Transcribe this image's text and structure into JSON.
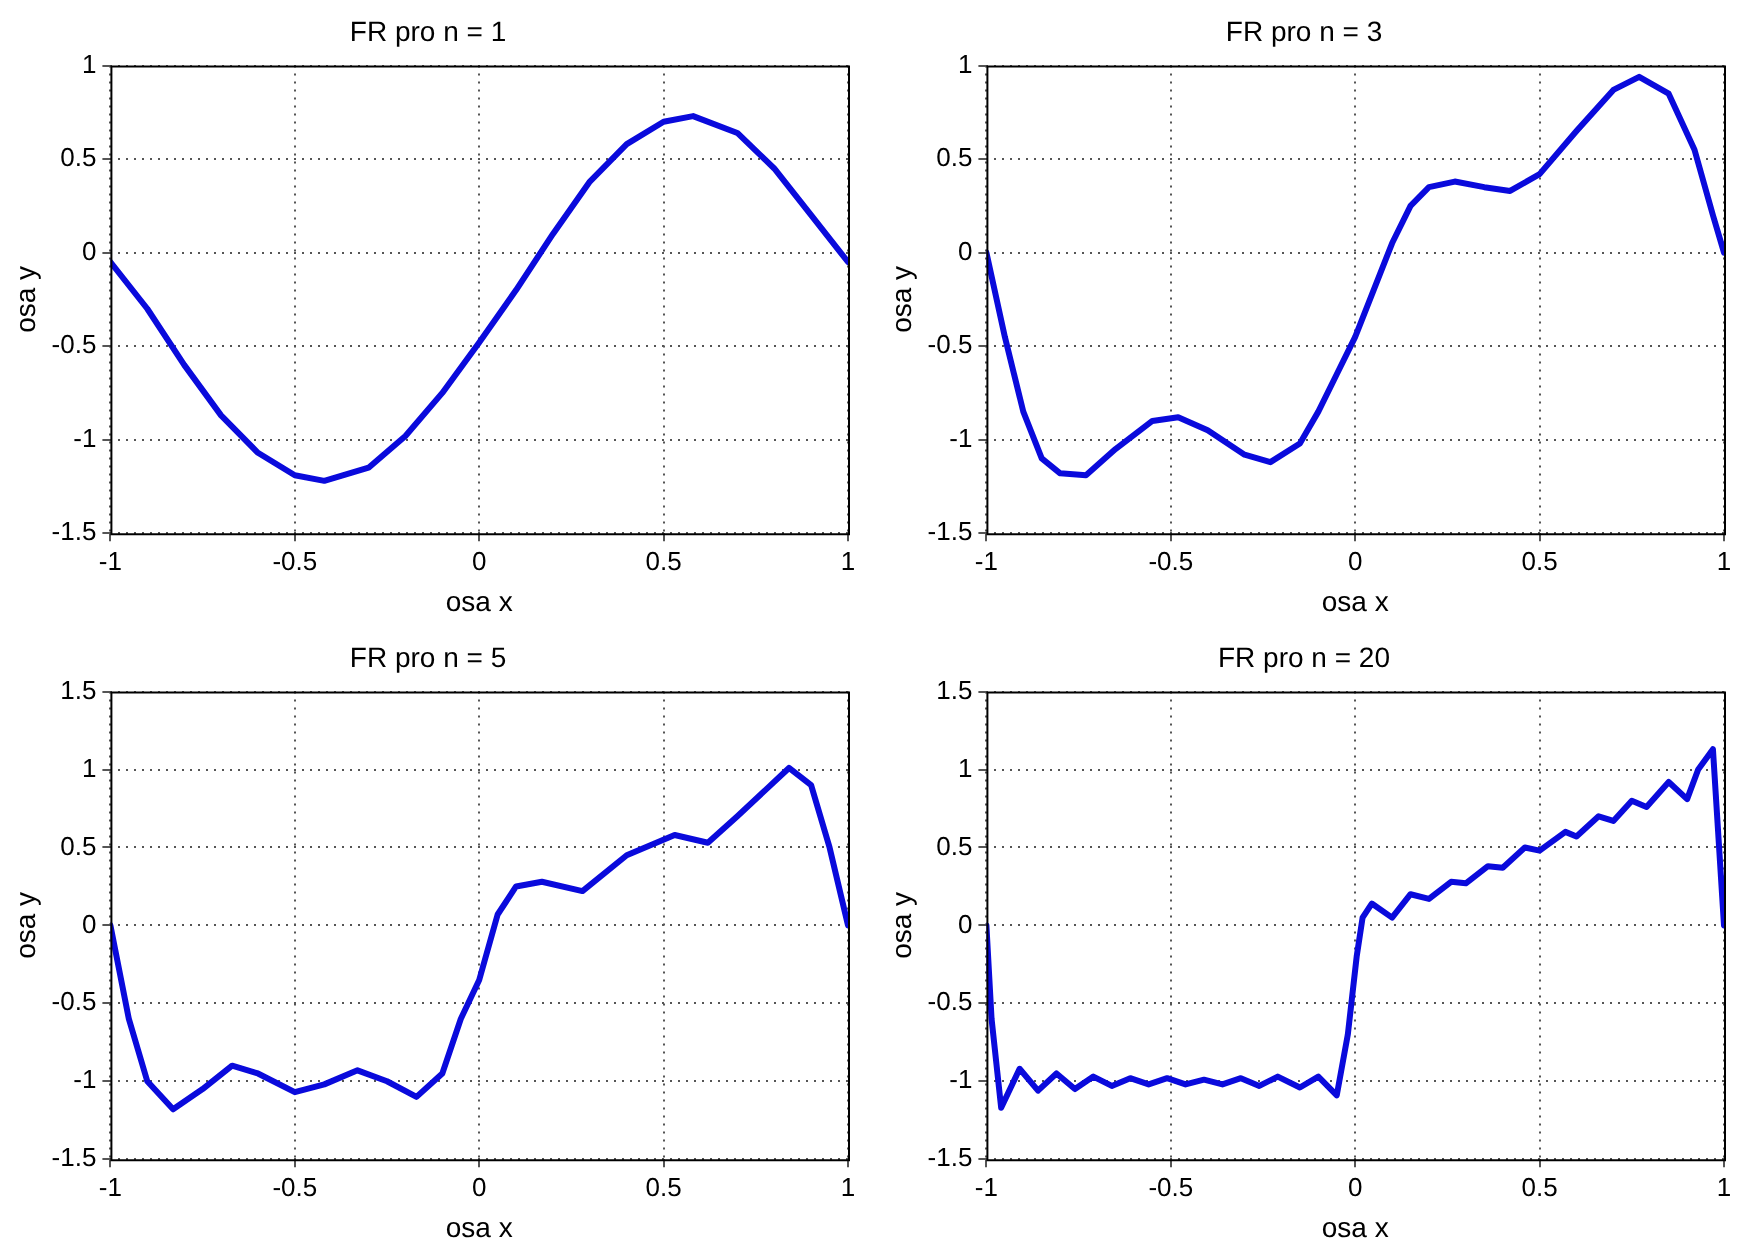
{
  "chart_data": [
    {
      "type": "line",
      "title": "FR pro n = 1",
      "xlabel": "osa x",
      "ylabel": "osa y",
      "xlim": [
        -1,
        1
      ],
      "xticks": [
        -1,
        -0.5,
        0,
        0.5,
        1
      ],
      "ylim": [
        -1.5,
        1
      ],
      "yticks": [
        -1.5,
        -1,
        -0.5,
        0,
        0.5,
        1
      ],
      "grid": true,
      "marker": "none",
      "line_style": "solid",
      "series": [
        {
          "color": "#0a0adc",
          "x": [
            -1,
            -0.9,
            -0.8,
            -0.7,
            -0.6,
            -0.5,
            -0.42,
            -0.3,
            -0.2,
            -0.1,
            0,
            0.1,
            0.2,
            0.3,
            0.4,
            0.5,
            0.58,
            0.7,
            0.8,
            0.9,
            1
          ],
          "values": [
            -0.05,
            -0.3,
            -0.6,
            -0.87,
            -1.07,
            -1.19,
            -1.22,
            -1.15,
            -0.98,
            -0.75,
            -0.48,
            -0.2,
            0.1,
            0.38,
            0.58,
            0.7,
            0.73,
            0.64,
            0.45,
            0.2,
            -0.05
          ]
        }
      ]
    },
    {
      "type": "line",
      "title": "FR pro n = 3",
      "xlabel": "osa x",
      "ylabel": "osa y",
      "xlim": [
        -1,
        1
      ],
      "xticks": [
        -1,
        -0.5,
        0,
        0.5,
        1
      ],
      "ylim": [
        -1.5,
        1
      ],
      "yticks": [
        -1.5,
        -1,
        -0.5,
        0,
        0.5,
        1
      ],
      "grid": true,
      "marker": "none",
      "line_style": "solid",
      "series": [
        {
          "color": "#0a0adc",
          "x": [
            -1,
            -0.95,
            -0.9,
            -0.85,
            -0.8,
            -0.73,
            -0.65,
            -0.55,
            -0.48,
            -0.4,
            -0.3,
            -0.23,
            -0.15,
            -0.1,
            -0.05,
            0,
            0.05,
            0.1,
            0.15,
            0.2,
            0.27,
            0.35,
            0.42,
            0.5,
            0.6,
            0.7,
            0.77,
            0.85,
            0.92,
            0.97,
            1
          ],
          "values": [
            0,
            -0.45,
            -0.85,
            -1.1,
            -1.18,
            -1.19,
            -1.05,
            -0.9,
            -0.88,
            -0.95,
            -1.08,
            -1.12,
            -1.02,
            -0.85,
            -0.65,
            -0.45,
            -0.2,
            0.05,
            0.25,
            0.35,
            0.38,
            0.35,
            0.33,
            0.42,
            0.65,
            0.87,
            0.94,
            0.85,
            0.55,
            0.2,
            0
          ]
        }
      ]
    },
    {
      "type": "line",
      "title": "FR pro n = 5",
      "xlabel": "osa x",
      "ylabel": "osa y",
      "xlim": [
        -1,
        1
      ],
      "xticks": [
        -1,
        -0.5,
        0,
        0.5,
        1
      ],
      "ylim": [
        -1.5,
        1.5
      ],
      "yticks": [
        -1.5,
        -1,
        -0.5,
        0,
        0.5,
        1,
        1.5
      ],
      "grid": true,
      "marker": "none",
      "line_style": "solid",
      "series": [
        {
          "color": "#0a0adc",
          "x": [
            -1,
            -0.95,
            -0.9,
            -0.83,
            -0.75,
            -0.67,
            -0.6,
            -0.5,
            -0.42,
            -0.33,
            -0.25,
            -0.17,
            -0.1,
            -0.05,
            0,
            0.05,
            0.1,
            0.17,
            0.28,
            0.4,
            0.53,
            0.62,
            0.7,
            0.84,
            0.9,
            0.95,
            1
          ],
          "values": [
            0,
            -0.6,
            -1.0,
            -1.18,
            -1.05,
            -0.9,
            -0.95,
            -1.07,
            -1.02,
            -0.93,
            -1.0,
            -1.1,
            -0.95,
            -0.6,
            -0.35,
            0.07,
            0.25,
            0.28,
            0.22,
            0.45,
            0.58,
            0.53,
            0.7,
            1.01,
            0.9,
            0.5,
            0
          ]
        }
      ]
    },
    {
      "type": "line",
      "title": "FR pro n = 20",
      "xlabel": "osa x",
      "ylabel": "osa y",
      "xlim": [
        -1,
        1
      ],
      "xticks": [
        -1,
        -0.5,
        0,
        0.5,
        1
      ],
      "ylim": [
        -1.5,
        1.5
      ],
      "yticks": [
        -1.5,
        -1,
        -0.5,
        0,
        0.5,
        1,
        1.5
      ],
      "grid": true,
      "marker": "none",
      "line_style": "solid",
      "series": [
        {
          "color": "#0a0adc",
          "x": [
            -1,
            -0.986,
            -0.96,
            -0.91,
            -0.86,
            -0.81,
            -0.76,
            -0.71,
            -0.66,
            -0.61,
            -0.56,
            -0.51,
            -0.46,
            -0.41,
            -0.36,
            -0.31,
            -0.26,
            -0.21,
            -0.15,
            -0.1,
            -0.05,
            -0.02,
            0.004,
            0.02,
            0.045,
            0.1,
            0.15,
            0.2,
            0.26,
            0.3,
            0.36,
            0.4,
            0.46,
            0.5,
            0.57,
            0.6,
            0.66,
            0.7,
            0.75,
            0.79,
            0.85,
            0.9,
            0.93,
            0.97,
            1
          ],
          "values": [
            0,
            -0.6,
            -1.17,
            -0.92,
            -1.06,
            -0.95,
            -1.05,
            -0.97,
            -1.03,
            -0.98,
            -1.02,
            -0.98,
            -1.02,
            -0.99,
            -1.02,
            -0.98,
            -1.03,
            -0.97,
            -1.04,
            -0.97,
            -1.09,
            -0.7,
            -0.2,
            0.05,
            0.14,
            0.05,
            0.2,
            0.17,
            0.28,
            0.27,
            0.38,
            0.37,
            0.5,
            0.48,
            0.6,
            0.57,
            0.7,
            0.67,
            0.8,
            0.76,
            0.92,
            0.81,
            1.0,
            1.13,
            0
          ]
        }
      ]
    }
  ]
}
